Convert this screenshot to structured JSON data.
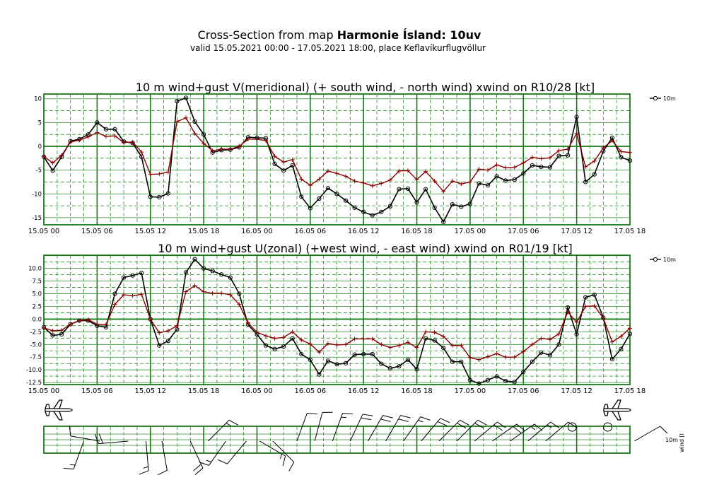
{
  "header": {
    "title_prefix": "Cross-Section from map ",
    "title_bold": "Harmonie Ísland: 10uv",
    "subtitle": "valid 15.05.2021 00:00 - 17.05.2021 18:00, place Keflavíkurflugvöllur"
  },
  "colors": {
    "grid": "#1a7a1a",
    "grid_dashed": "#2e8b2e",
    "wind": "#000000",
    "gust": "#8b0000"
  },
  "chart_data": [
    {
      "type": "line",
      "title": "10 m wind+gust V(meridional) (+ south wind, - north wind) xwind on R10/28 [kt]",
      "x_tick_labels": [
        "15.05 00",
        "15.05 06",
        "15.05 12",
        "15.05 18",
        "16.05 00",
        "16.05 06",
        "16.05 12",
        "16.05 18",
        "17.05 00",
        "17.05 06",
        "17.05 12",
        "17.05 18"
      ],
      "x_unit": "hours from 15.05 00",
      "xlim": [
        0,
        66
      ],
      "ylim": [
        -16.5,
        11
      ],
      "y_ticks": [
        10,
        5,
        0,
        -5,
        -10,
        -15
      ],
      "y_tick_labels": [
        "10",
        "5",
        "0",
        "-5",
        "-10",
        "-15"
      ],
      "legend": {
        "label": "10m",
        "position": "right"
      },
      "series": [
        {
          "name": "10m",
          "role": "wind",
          "values": [
            -2.2,
            -5.1,
            -2.2,
            1.1,
            1.5,
            2.5,
            5.0,
            3.6,
            3.6,
            1.0,
            0.7,
            -2.2,
            -10.6,
            -10.7,
            -9.9,
            9.5,
            10.2,
            5.2,
            2.5,
            -1.3,
            -0.8,
            -0.7,
            -0.2,
            1.9,
            1.8,
            1.7,
            -3.7,
            -5.1,
            -4.0,
            -10.6,
            -13.0,
            -11.0,
            -8.8,
            -10.0,
            -11.4,
            -12.9,
            -13.8,
            -14.5,
            -13.8,
            -12.6,
            -9.0,
            -8.9,
            -11.8,
            -9.0,
            -12.9,
            -15.9,
            -12.2,
            -12.7,
            -12.1,
            -7.8,
            -8.2,
            -6.3,
            -7.2,
            -7.0,
            -5.7,
            -4.0,
            -4.3,
            -4.4,
            -2.0,
            -1.9,
            6.2,
            -7.5,
            -5.9,
            -1.0,
            1.8,
            -2.3,
            -3.0
          ]
        },
        {
          "role": "gust",
          "values": [
            -2.1,
            -3.5,
            -1.9,
            0.9,
            1.3,
            2.0,
            2.9,
            2.1,
            2.2,
            0.8,
            0.9,
            -1.2,
            -5.9,
            -5.8,
            -5.4,
            5.2,
            6.0,
            2.7,
            0.6,
            -0.9,
            -0.6,
            -0.6,
            0.0,
            1.5,
            1.5,
            1.2,
            -2.1,
            -3.3,
            -2.8,
            -6.9,
            -8.2,
            -6.9,
            -5.2,
            -5.7,
            -6.3,
            -7.3,
            -7.7,
            -8.3,
            -7.8,
            -7.1,
            -5.2,
            -5.1,
            -7.0,
            -5.3,
            -7.3,
            -9.5,
            -7.3,
            -7.9,
            -7.5,
            -4.8,
            -5.0,
            -3.9,
            -4.5,
            -4.4,
            -3.5,
            -2.3,
            -2.6,
            -2.4,
            -0.9,
            -0.6,
            2.7,
            -4.3,
            -3.1,
            -0.3,
            1.2,
            -1.1,
            -1.3
          ]
        }
      ]
    },
    {
      "type": "line",
      "title": "10 m wind+gust U(zonal) (+west wind, - east wind) xwind on R01/19 [kt]",
      "x_tick_labels": [
        "15.05 00",
        "15.05 06",
        "15.05 12",
        "15.05 18",
        "16.05 00",
        "16.05 06",
        "16.05 12",
        "16.05 18",
        "17.05 00",
        "17.05 06",
        "17.05 12",
        "17.05 18"
      ],
      "x_unit": "hours from 15.05 00",
      "xlim": [
        0,
        66
      ],
      "ylim": [
        -12.9,
        12.6
      ],
      "y_ticks": [
        10,
        7.5,
        5,
        2.5,
        0,
        -2.5,
        -5,
        -7.5,
        -10,
        -12.5
      ],
      "y_tick_labels": [
        "10.0",
        "7.5",
        "5.0",
        "2.5",
        "0.0",
        "-2.5",
        "-5.0",
        "-7.5",
        "-10.0",
        "-12.5"
      ],
      "legend": {
        "label": "10m",
        "position": "right"
      },
      "series": [
        {
          "name": "10m",
          "role": "wind",
          "values": [
            -1.6,
            -3.2,
            -3.0,
            -1.0,
            -0.3,
            -0.3,
            -1.3,
            -1.6,
            5.0,
            8.2,
            8.6,
            9.1,
            0.0,
            -5.2,
            -4.3,
            -2.0,
            9.2,
            11.8,
            10.0,
            9.5,
            8.8,
            8.2,
            5.0,
            -1.1,
            -3.0,
            -5.2,
            -5.9,
            -5.4,
            -3.8,
            -6.9,
            -8.0,
            -10.9,
            -8.2,
            -8.9,
            -8.7,
            -7.0,
            -6.9,
            -6.9,
            -8.8,
            -9.7,
            -9.3,
            -8.0,
            -9.9,
            -3.8,
            -4.2,
            -5.7,
            -8.4,
            -8.4,
            -12.0,
            -12.7,
            -12.0,
            -11.3,
            -12.2,
            -12.4,
            -10.4,
            -8.4,
            -6.6,
            -7.1,
            -5.0,
            2.3,
            -3.0,
            4.3,
            4.8,
            0.3,
            -7.9,
            -5.9,
            -2.9
          ]
        },
        {
          "role": "gust",
          "values": [
            -1.7,
            -2.3,
            -2.2,
            -1.0,
            -0.3,
            -0.1,
            -1.0,
            -1.1,
            2.9,
            4.8,
            4.6,
            4.9,
            0.0,
            -2.7,
            -2.3,
            -1.3,
            5.4,
            6.6,
            5.4,
            5.1,
            5.1,
            4.8,
            2.9,
            -0.7,
            -2.6,
            -3.3,
            -3.8,
            -3.6,
            -2.5,
            -4.1,
            -4.9,
            -6.5,
            -4.8,
            -5.1,
            -5.0,
            -3.9,
            -3.9,
            -3.9,
            -5.0,
            -5.6,
            -5.2,
            -4.6,
            -5.6,
            -2.5,
            -2.6,
            -3.4,
            -5.2,
            -5.2,
            -7.6,
            -8.0,
            -7.4,
            -6.8,
            -7.5,
            -7.5,
            -6.4,
            -5.0,
            -3.8,
            -4.0,
            -2.9,
            1.4,
            -0.6,
            2.5,
            2.6,
            0.2,
            -4.5,
            -3.4,
            -1.8
          ]
        }
      ]
    },
    {
      "type": "wind_barbs",
      "x_unit": "hours from 15.05 00",
      "xlim": [
        0,
        66
      ],
      "label_10m": "10m",
      "label_wind": "wind [l",
      "barbs": [
        {
          "t": 4.5,
          "dir": 200,
          "spd": 15
        },
        {
          "t": 6.3,
          "dir": 280,
          "spd": 10
        },
        {
          "t": 9.5,
          "dir": 265,
          "spd": 20
        },
        {
          "t": 11.5,
          "dir": 175,
          "spd": 15
        },
        {
          "t": 13.3,
          "dir": 170,
          "spd": 10
        },
        {
          "t": 16.5,
          "dir": 155,
          "spd": 20
        },
        {
          "t": 18.5,
          "dir": 45,
          "spd": 15
        },
        {
          "t": 20.5,
          "dir": 215,
          "spd": 15
        },
        {
          "t": 22.8,
          "dir": 220,
          "spd": 10
        },
        {
          "t": 24.3,
          "dir": 120,
          "spd": 15
        },
        {
          "t": 25.8,
          "dir": 135,
          "spd": 10
        },
        {
          "t": 28.5,
          "dir": 20,
          "spd": 10
        },
        {
          "t": 30.5,
          "dir": 15,
          "spd": 10
        },
        {
          "t": 32.5,
          "dir": 20,
          "spd": 15
        },
        {
          "t": 34.5,
          "dir": 25,
          "spd": 20
        },
        {
          "t": 36.5,
          "dir": 30,
          "spd": 20
        },
        {
          "t": 38.5,
          "dir": 30,
          "spd": 20
        },
        {
          "t": 40.5,
          "dir": 35,
          "spd": 15
        },
        {
          "t": 42.5,
          "dir": 40,
          "spd": 20
        },
        {
          "t": 44.5,
          "dir": 45,
          "spd": 20
        },
        {
          "t": 46.5,
          "dir": 45,
          "spd": 20
        },
        {
          "t": 48.5,
          "dir": 50,
          "spd": 20
        },
        {
          "t": 50.5,
          "dir": 55,
          "spd": 20
        },
        {
          "t": 52.5,
          "dir": 55,
          "spd": 15
        },
        {
          "t": 54.5,
          "dir": 50,
          "spd": 15
        },
        {
          "t": 56.5,
          "dir": 50,
          "spd": 10
        },
        {
          "t": 59.5,
          "dir": 0,
          "spd": 0
        },
        {
          "t": 63.5,
          "dir": 0,
          "spd": 0
        },
        {
          "t": 66.5,
          "dir": 60,
          "spd": 10
        }
      ]
    }
  ]
}
